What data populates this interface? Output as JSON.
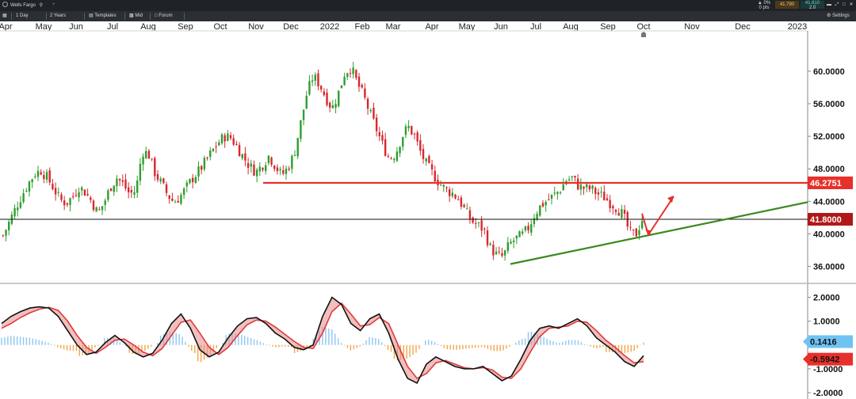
{
  "window": {
    "symbol": "Wells Fargo",
    "add_tab": "+",
    "change_pct": "0%",
    "change_pts": "0 pts",
    "bid": "41.790",
    "ask": "41.810",
    "spread": "2.0",
    "settings_label": "Settings"
  },
  "toolbar": {
    "interval": "1 Day",
    "range": "2 Years",
    "templates": "Templates",
    "price_type": "Mid",
    "forum": "Forum"
  },
  "colors": {
    "up": "#2e9e2e",
    "down": "#d9272e",
    "resistance": "#e8302a",
    "support": "#3a8a1f",
    "price_badge": "#b01818",
    "resistance_badge": "#e8302a",
    "osc_up": "#8cc7ef",
    "osc_down": "#f0a64a"
  },
  "chart_data": {
    "type": "candlestick",
    "x_axis_labels": [
      "Apr",
      "May",
      "Jun",
      "Jul",
      "Aug",
      "Sep",
      "Oct",
      "Nov",
      "Dec",
      "2022",
      "Feb",
      "Mar",
      "Apr",
      "May",
      "Jun",
      "Jul",
      "Aug",
      "Sep",
      "Oct",
      "Nov",
      "Dec",
      "2023"
    ],
    "y_ticks": [
      "60.0000",
      "56.0000",
      "52.0000",
      "48.0000",
      "44.0000",
      "40.0000",
      "36.0000"
    ],
    "y_tick_values": [
      60,
      56,
      52,
      48,
      44,
      40,
      36
    ],
    "ylim": [
      34.5,
      63.2
    ],
    "price": [
      39.8,
      41.5,
      43.2,
      44.8,
      46.2,
      47.4,
      47.8,
      46.9,
      45.6,
      44.2,
      43.8,
      44.6,
      45.8,
      45.1,
      44.0,
      42.5,
      43.9,
      45.8,
      46.9,
      46.1,
      44.9,
      45.3,
      50.2,
      49.8,
      47.5,
      46.2,
      44.8,
      43.9,
      44.6,
      45.7,
      46.9,
      47.8,
      48.9,
      50.1,
      51.2,
      52.0,
      51.8,
      50.7,
      49.4,
      48.3,
      47.6,
      48.5,
      49.6,
      48.4,
      47.2,
      48.1,
      49.8,
      53.5,
      57.2,
      59.4,
      58.4,
      56.8,
      55.4,
      57.3,
      59.8,
      60.5,
      58.5,
      56.9,
      54.8,
      52.9,
      50.9,
      49.3,
      49.8,
      51.9,
      53.2,
      52.1,
      50.0,
      48.4,
      47.3,
      46.2,
      45.4,
      45.0,
      44.3,
      42.9,
      41.6,
      41.1,
      40.5,
      38.3,
      37.4,
      37.2,
      38.7,
      39.4,
      39.8,
      40.7,
      42.4,
      43.5,
      44.1,
      44.7,
      45.4,
      46.6,
      46.9,
      45.8,
      45.6,
      45.5,
      44.9,
      44.5,
      43.8,
      43.2,
      42.3,
      40.2,
      39.9,
      41.8
    ],
    "last_close": 41.8,
    "oscillator": {
      "ylim": [
        -2.1,
        2.35
      ],
      "y_ticks": [
        "2.0000",
        "1.0000",
        "-1.0000",
        "-2.0000"
      ],
      "y_tick_values": [
        2,
        1,
        -1,
        -2
      ],
      "macd": [
        0.9,
        1.2,
        1.4,
        1.55,
        1.6,
        1.55,
        1.2,
        0.6,
        0.0,
        -0.4,
        -0.3,
        0.1,
        0.4,
        0.1,
        -0.3,
        -0.5,
        -0.35,
        0.2,
        0.9,
        1.3,
        0.7,
        -0.2,
        -0.5,
        -0.3,
        0.3,
        0.8,
        1.1,
        1.15,
        0.9,
        0.5,
        0.25,
        -0.1,
        -0.2,
        0.0,
        1.2,
        2.0,
        1.7,
        0.9,
        0.6,
        1.1,
        1.3,
        0.5,
        -0.6,
        -1.4,
        -1.6,
        -0.8,
        -0.5,
        -0.7,
        -0.9,
        -1.0,
        -1.0,
        -0.9,
        -1.2,
        -1.5,
        -1.3,
        -0.6,
        0.2,
        0.7,
        0.8,
        0.7,
        0.9,
        1.1,
        0.8,
        0.3,
        0.0,
        -0.3,
        -0.7,
        -0.9,
        -0.45
      ],
      "signal": [
        0.7,
        0.9,
        1.15,
        1.35,
        1.5,
        1.58,
        1.45,
        1.0,
        0.4,
        -0.1,
        -0.35,
        -0.1,
        0.2,
        0.25,
        0.0,
        -0.3,
        -0.45,
        -0.15,
        0.4,
        0.95,
        1.05,
        0.5,
        -0.1,
        -0.4,
        -0.1,
        0.4,
        0.85,
        1.05,
        1.0,
        0.75,
        0.45,
        0.15,
        -0.1,
        -0.15,
        0.5,
        1.4,
        1.75,
        1.3,
        0.8,
        0.85,
        1.15,
        0.9,
        0.0,
        -0.9,
        -1.4,
        -1.2,
        -0.75,
        -0.65,
        -0.8,
        -0.95,
        -1.0,
        -0.95,
        -1.05,
        -1.35,
        -1.4,
        -1.0,
        -0.3,
        0.35,
        0.7,
        0.75,
        0.8,
        1.0,
        0.95,
        0.6,
        0.2,
        -0.1,
        -0.45,
        -0.75,
        -0.7
      ],
      "histogram_label": "0.1416",
      "signal_label": "-0.5942",
      "histogram_value": 0.1416,
      "signal_value": -0.5942
    },
    "price_labels": {
      "resistance": "46.2751",
      "last": "41.8000"
    },
    "resistance_level": 46.2751,
    "support_line": {
      "from_price": 36.3,
      "to_price": 43.9
    },
    "grid": false
  }
}
